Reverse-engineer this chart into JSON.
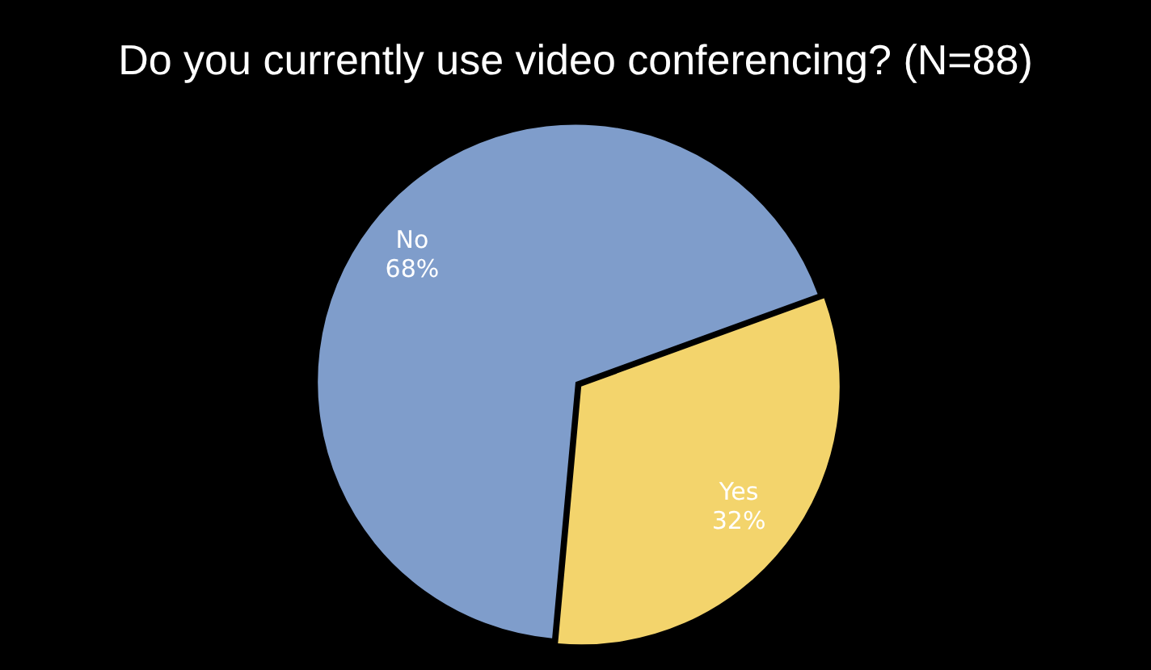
{
  "chart_data": {
    "type": "pie",
    "title": "Do you currently use video conferencing? (N=88)",
    "categories": [
      "Yes",
      "No"
    ],
    "values": [
      32,
      68
    ],
    "colors": [
      "#f3d46c",
      "#7f9dcb"
    ],
    "value_labels": [
      "32%",
      "68%"
    ],
    "legend": false
  }
}
